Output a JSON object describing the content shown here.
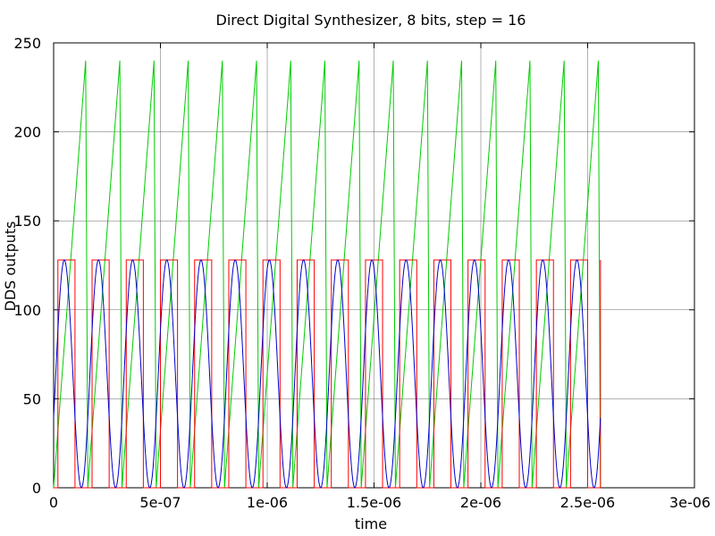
{
  "chart_data": {
    "type": "line",
    "title": "Direct Digital Synthesizer, 8 bits, step = 16",
    "xlabel": "time",
    "ylabel": "DDS outputs",
    "xlim": [
      0,
      3e-06
    ],
    "ylim": [
      0,
      250
    ],
    "x_ticks": [
      {
        "value": 0,
        "label": "0"
      },
      {
        "value": 5e-07,
        "label": "5e-07"
      },
      {
        "value": 1e-06,
        "label": "1e-06"
      },
      {
        "value": 1.5e-06,
        "label": "1.5e-06"
      },
      {
        "value": 2e-06,
        "label": "2e-06"
      },
      {
        "value": 2.5e-06,
        "label": "2.5e-06"
      },
      {
        "value": 3e-06,
        "label": "3e-06"
      }
    ],
    "y_ticks": [
      {
        "value": 0,
        "label": "0"
      },
      {
        "value": 50,
        "label": "50"
      },
      {
        "value": 100,
        "label": "100"
      },
      {
        "value": 150,
        "label": "150"
      },
      {
        "value": 200,
        "label": "200"
      },
      {
        "value": 250,
        "label": "250"
      }
    ],
    "grid": true,
    "legend": "none",
    "series": [
      {
        "style": "sawtooth",
        "color": "#00cc00",
        "period": 1.6e-07,
        "step_time": 1e-08,
        "step_value": 16,
        "min": 0,
        "max": 240,
        "x_end": 2.56e-06
      },
      {
        "style": "square",
        "color": "#ff0000",
        "period": 1.6e-07,
        "high_value": 128,
        "low_value": 0,
        "phase": 8e-08,
        "x_end": 2.56e-06
      },
      {
        "style": "sine",
        "color": "#0000cc",
        "period": 1.6e-07,
        "amplitude": 64,
        "offset": 64,
        "phase_shift": 4e-08,
        "x_end": 2.56e-06
      }
    ]
  }
}
